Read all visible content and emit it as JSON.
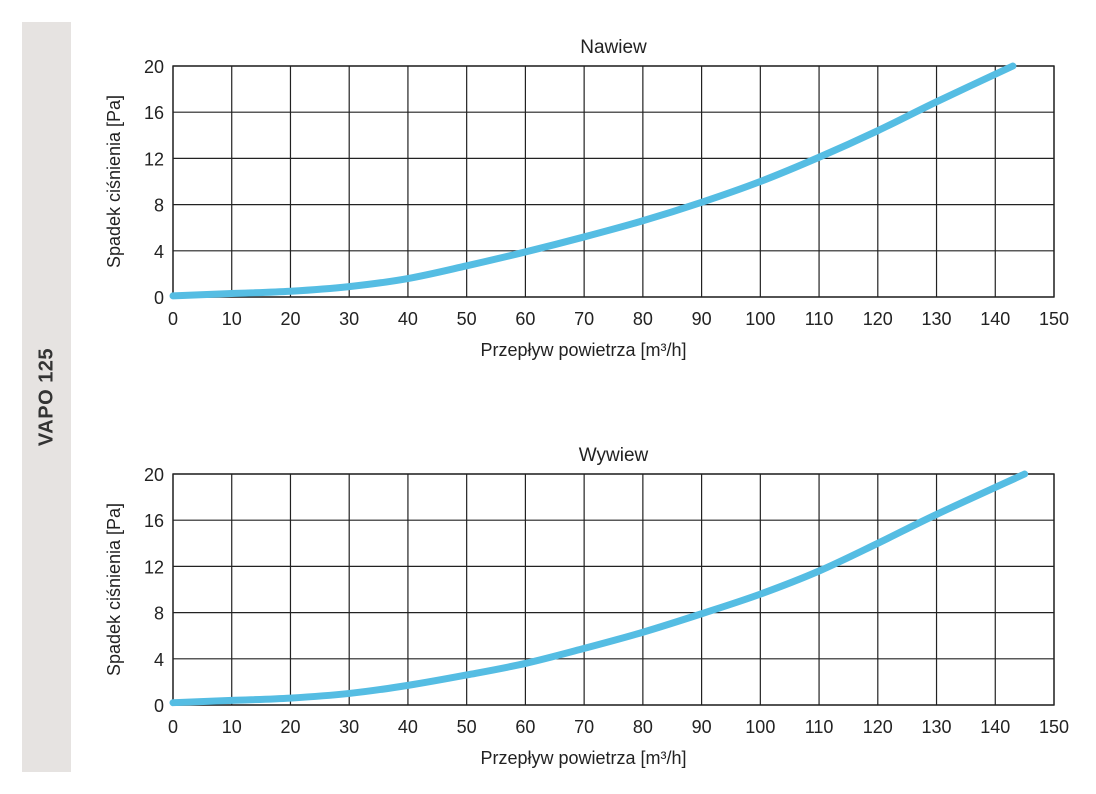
{
  "sidebar": {
    "label": "VAPO 125"
  },
  "colors": {
    "curve": "#55bde3",
    "grid": "#222222",
    "sidebar": "#e6e3e1"
  },
  "chart_data": [
    {
      "type": "line",
      "title": "Nawiew",
      "xlabel": "Przepływ powietrza [m³/h]",
      "ylabel": "Spadek ciśnienia [Pa]",
      "xlim": [
        0,
        150
      ],
      "ylim": [
        0,
        20
      ],
      "xticks": [
        0,
        10,
        20,
        30,
        40,
        50,
        60,
        70,
        80,
        90,
        100,
        110,
        120,
        130,
        140,
        150
      ],
      "yticks": [
        0,
        4,
        8,
        12,
        16,
        20
      ],
      "grid": true,
      "series": [
        {
          "name": "Nawiew",
          "x": [
            0,
            10,
            20,
            30,
            40,
            50,
            60,
            70,
            80,
            90,
            100,
            110,
            120,
            130,
            143
          ],
          "y": [
            0.1,
            0.3,
            0.5,
            0.9,
            1.6,
            2.7,
            3.9,
            5.2,
            6.6,
            8.2,
            10.0,
            12.1,
            14.4,
            16.9,
            20.0
          ]
        }
      ]
    },
    {
      "type": "line",
      "title": "Wywiew",
      "xlabel": "Przepływ powietrza [m³/h]",
      "ylabel": "Spadek ciśnienia [Pa]",
      "xlim": [
        0,
        150
      ],
      "ylim": [
        0,
        20
      ],
      "xticks": [
        0,
        10,
        20,
        30,
        40,
        50,
        60,
        70,
        80,
        90,
        100,
        110,
        120,
        130,
        140,
        150
      ],
      "yticks": [
        0,
        4,
        8,
        12,
        16,
        20
      ],
      "grid": true,
      "series": [
        {
          "name": "Wywiew",
          "x": [
            0,
            10,
            20,
            30,
            40,
            50,
            60,
            70,
            80,
            90,
            100,
            110,
            120,
            130,
            145
          ],
          "y": [
            0.2,
            0.4,
            0.6,
            1.0,
            1.7,
            2.6,
            3.6,
            4.9,
            6.3,
            7.9,
            9.6,
            11.6,
            14.0,
            16.5,
            20.0
          ]
        }
      ]
    }
  ]
}
